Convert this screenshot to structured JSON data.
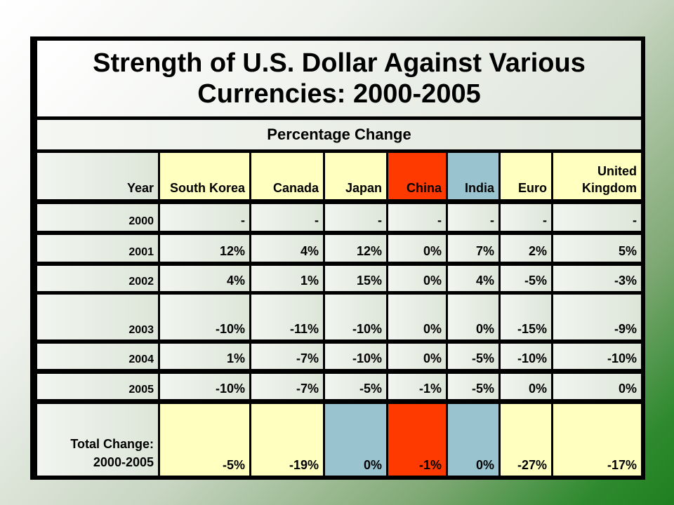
{
  "title": "Strength of U.S. Dollar Against Various Currencies: 2000-2005",
  "subtitle": "Percentage Change",
  "headers": {
    "year": "Year",
    "south_korea": "South Korea",
    "canada": "Canada",
    "japan": "Japan",
    "china": "China",
    "india": "India",
    "euro": "Euro",
    "uk": "United Kingdom"
  },
  "rows": [
    {
      "year": "2000",
      "values": [
        "-",
        "-",
        "-",
        "-",
        "-",
        "-",
        "-"
      ]
    },
    {
      "year": "2001",
      "values": [
        "12%",
        "4%",
        "12%",
        "0%",
        "7%",
        "2%",
        "5%"
      ]
    },
    {
      "year": "2002",
      "values": [
        "4%",
        "1%",
        "15%",
        "0%",
        "4%",
        "-5%",
        "-3%"
      ]
    },
    {
      "year": "2003",
      "values": [
        "-10%",
        "-11%",
        "-10%",
        "0%",
        "0%",
        "-15%",
        "-9%"
      ]
    },
    {
      "year": "2004",
      "values": [
        "1%",
        "-7%",
        "-10%",
        "0%",
        "-5%",
        "-10%",
        "-10%"
      ]
    },
    {
      "year": "2005",
      "values": [
        "-10%",
        "-7%",
        "-5%",
        "-1%",
        "-5%",
        "0%",
        "0%"
      ]
    }
  ],
  "total": {
    "label": "Total Change: 2000-2005",
    "values": [
      "-5%",
      "-19%",
      "0%",
      "-1%",
      "0%",
      "-27%",
      "-17%"
    ]
  },
  "colors": {
    "highlight_yellow": "#ffffc0",
    "highlight_blue": "#99c4cf",
    "highlight_red": "#ff3a00",
    "border": "#000000"
  }
}
